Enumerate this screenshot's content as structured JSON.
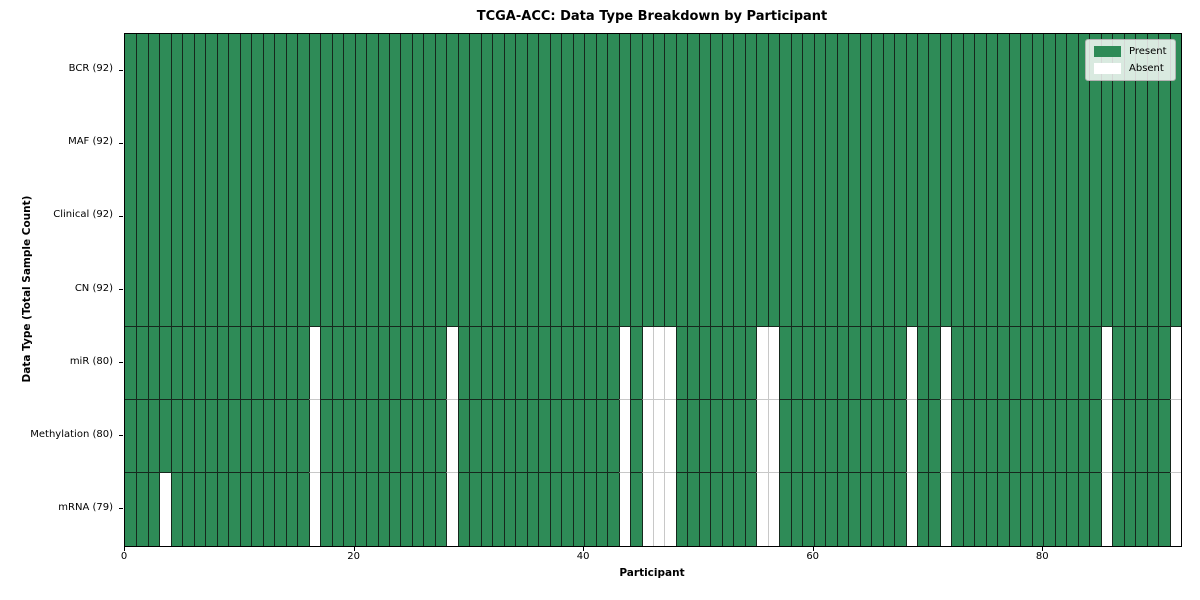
{
  "chart_data": {
    "type": "heatmap",
    "title": "TCGA-ACC: Data Type Breakdown by Participant",
    "xlabel": "Participant",
    "ylabel": "Data Type (Total Sample Count)",
    "n_participants": 92,
    "xlim": [
      0,
      92
    ],
    "x_ticks": [
      0,
      20,
      40,
      60,
      80
    ],
    "grid": "cell-edges",
    "legend_position": "upper-right",
    "rows": [
      {
        "label": "BCR (92)",
        "data_type": "BCR",
        "present_count": 92,
        "absent_participants": []
      },
      {
        "label": "MAF (92)",
        "data_type": "MAF",
        "present_count": 92,
        "absent_participants": []
      },
      {
        "label": "Clinical (92)",
        "data_type": "Clinical",
        "present_count": 92,
        "absent_participants": []
      },
      {
        "label": "CN (92)",
        "data_type": "CN",
        "present_count": 92,
        "absent_participants": []
      },
      {
        "label": "miR (80)",
        "data_type": "miR",
        "present_count": 80,
        "absent_participants": [
          16,
          28,
          43,
          45,
          46,
          47,
          55,
          56,
          68,
          71,
          85,
          91
        ]
      },
      {
        "label": "Methylation (80)",
        "data_type": "Methylation",
        "present_count": 80,
        "absent_participants": [
          16,
          28,
          43,
          45,
          46,
          47,
          55,
          56,
          68,
          71,
          85,
          91
        ]
      },
      {
        "label": "mRNA (79)",
        "data_type": "mRNA",
        "present_count": 79,
        "absent_participants": [
          3,
          16,
          28,
          43,
          45,
          46,
          47,
          55,
          56,
          68,
          71,
          85,
          91
        ]
      }
    ],
    "legend_entries": [
      {
        "label": "Present",
        "color": "#2e8b57"
      },
      {
        "label": "Absent",
        "color": "#ffffff"
      }
    ],
    "colors": {
      "present": "#2e8b57",
      "absent": "#ffffff",
      "grid_on_green": "#16281d",
      "grid_on_white": "#c8c8c8",
      "spine": "#000000"
    }
  }
}
